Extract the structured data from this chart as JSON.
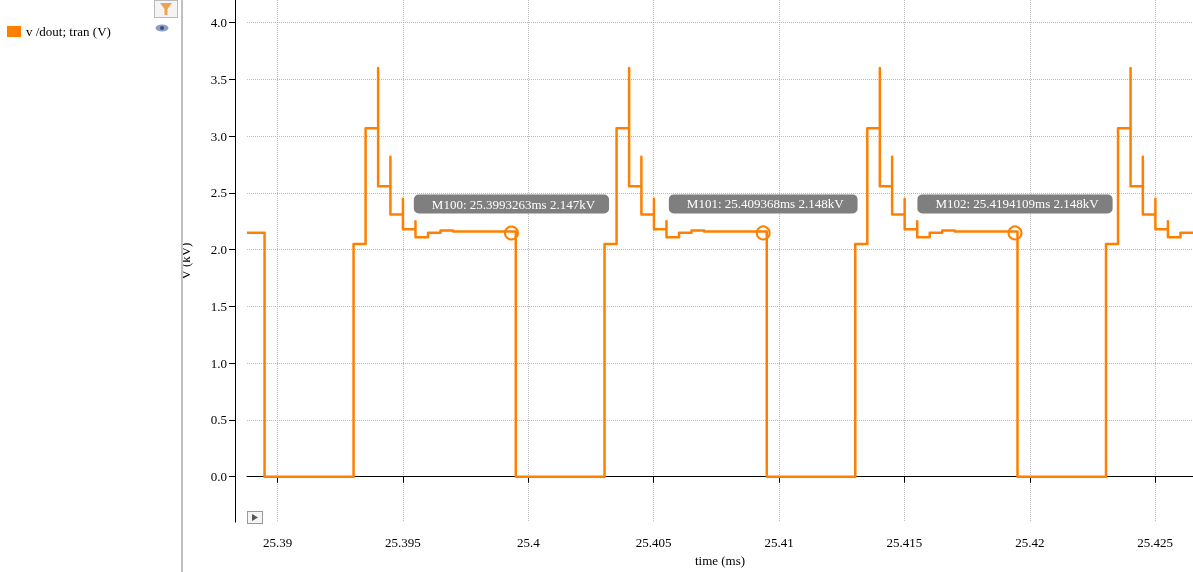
{
  "chart_data": {
    "type": "step",
    "xlabel": "time (ms)",
    "ylabel": "V (kV)",
    "x": [
      25.38878,
      25.38948,
      25.38948,
      25.39303,
      25.39351,
      25.39401,
      25.39401,
      25.3945,
      25.3945,
      25.395,
      25.395,
      25.3955,
      25.3955,
      25.396,
      25.3965,
      25.397,
      25.3995,
      25.40304,
      25.40352,
      25.40402,
      25.40402,
      25.40451,
      25.40451,
      25.40501,
      25.40501,
      25.40551,
      25.40551,
      25.40601,
      25.40651,
      25.40701,
      25.40951,
      25.41304,
      25.41352,
      25.41402,
      25.41402,
      25.41451,
      25.41451,
      25.41501,
      25.41501,
      25.41551,
      25.41551,
      25.41601,
      25.41651,
      25.41701,
      25.41951,
      25.42304,
      25.42352,
      25.42402,
      25.42402,
      25.42451,
      25.42451,
      25.42501,
      25.42501,
      25.42551,
      25.42551,
      25.42601,
      25.42651
    ],
    "series": [
      {
        "name": "v /dout; tran (V)",
        "color": "#ff8000",
        "values": [
          2.15,
          2.15,
          0,
          2.05,
          3.07,
          3.6,
          2.56,
          2.82,
          2.31,
          2.45,
          2.18,
          2.25,
          2.11,
          2.15,
          2.17,
          2.16,
          0,
          2.05,
          3.07,
          3.6,
          2.56,
          2.82,
          2.31,
          2.45,
          2.18,
          2.25,
          2.11,
          2.15,
          2.17,
          2.16,
          0,
          2.05,
          3.07,
          3.6,
          2.56,
          2.82,
          2.31,
          2.45,
          2.18,
          2.25,
          2.11,
          2.15,
          2.17,
          2.16,
          0,
          2.05,
          3.07,
          3.6,
          2.56,
          2.82,
          2.31,
          2.45,
          2.18,
          2.25,
          2.11,
          2.15,
          2.15
        ]
      }
    ],
    "xlim": [
      25.38878,
      25.42651
    ],
    "xticks": [
      25.39,
      25.395,
      25.4,
      25.405,
      25.41,
      25.415,
      25.42,
      25.425
    ],
    "ylim": [
      -0.4,
      4.2
    ],
    "yticks": [
      {
        "value": 0,
        "label": "0.0"
      },
      {
        "value": 0.5,
        "label": "0.5"
      },
      {
        "value": 1,
        "label": "1.0"
      },
      {
        "value": 1.5,
        "label": "1.5"
      },
      {
        "value": 2,
        "label": "2.0"
      },
      {
        "value": 2.5,
        "label": "2.5"
      },
      {
        "value": 3,
        "label": "3.0"
      },
      {
        "value": 3.5,
        "label": "3.5"
      },
      {
        "value": 4,
        "label": "4.0"
      }
    ],
    "annotations": [
      {
        "text": "M100: 25.3993263ms 2.147kV",
        "x": 25.3993263,
        "y": 2.147
      },
      {
        "text": "M101: 25.409368ms 2.148kV",
        "x": 25.409368,
        "y": 2.148
      },
      {
        "text": "M102: 25.4194109ms 2.148kV",
        "x": 25.4194109,
        "y": 2.148
      }
    ],
    "grid": true,
    "legend": "top left",
    "marker": "none",
    "line_style": "solid"
  }
}
